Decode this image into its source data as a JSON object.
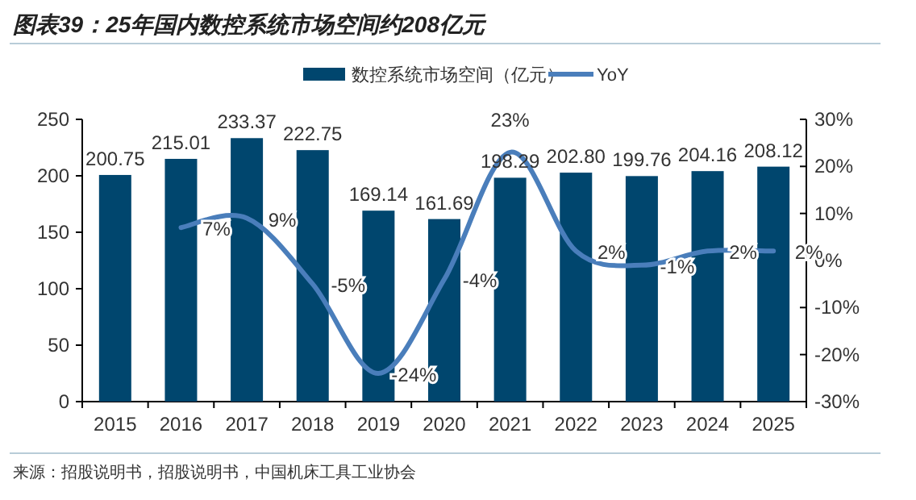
{
  "chart_data": {
    "type": "bar",
    "title": "图表39：25年国内数控系统市场空间约208亿元",
    "categories": [
      "2015",
      "2016",
      "2017",
      "2018",
      "2019",
      "2020",
      "2021",
      "2022",
      "2023",
      "2024",
      "2025"
    ],
    "series": [
      {
        "name": "数控系统市场空间（亿元）",
        "color": "#00466e",
        "values": [
          200.75,
          215.01,
          233.37,
          222.75,
          169.14,
          161.69,
          198.29,
          202.8,
          199.76,
          204.16,
          208.12
        ],
        "value_labels": [
          "200.75",
          "215.01",
          "233.37",
          "222.75",
          "169.14",
          "161.69",
          "198.29",
          "202.80",
          "199.76",
          "204.16",
          "208.12"
        ]
      },
      {
        "name": "YoY",
        "type": "line",
        "axis": "y2",
        "color": "#4a7ebb",
        "values": [
          null,
          7,
          9,
          -5,
          -24,
          -4,
          23,
          2,
          -1,
          2,
          2
        ],
        "value_labels": [
          null,
          "7%",
          "9%",
          "-5%",
          "-24%",
          "-4%",
          "23%",
          "2%",
          "-1%",
          "2%",
          "2%"
        ]
      }
    ],
    "ylim": [
      0,
      250
    ],
    "yticks": [
      0,
      50,
      100,
      150,
      200,
      250
    ],
    "y2lim": [
      -30,
      30
    ],
    "y2ticks": [
      {
        "value": -30,
        "label": "-30%"
      },
      {
        "value": -20,
        "label": "-20%"
      },
      {
        "value": -10,
        "label": "-10%"
      },
      {
        "value": 0,
        "label": "0%"
      },
      {
        "value": 10,
        "label": "10%"
      },
      {
        "value": 20,
        "label": "20%"
      },
      {
        "value": 30,
        "label": "30%"
      }
    ],
    "legend": "top",
    "annotations": [
      "来源：招股说明书，招股说明书，中国机床工具工业协会"
    ]
  }
}
